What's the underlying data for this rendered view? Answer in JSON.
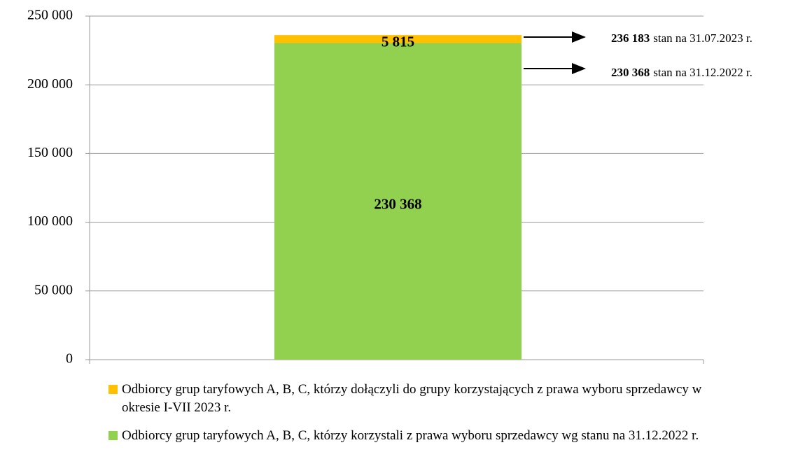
{
  "chart_data": {
    "type": "stacked-bar",
    "categories": [
      null
    ],
    "series": [
      {
        "name": "Odbiorcy grup taryfowych A, B, C, którzy korzystali z prawa wyboru sprzedawcy wg stanu na 31.12.2022 r.",
        "color": "#92d050",
        "values": [
          230368
        ],
        "value_labels": [
          "230 368"
        ]
      },
      {
        "name": "Odbiorcy grup taryfowych A, B, C, którzy dołączyli do grupy korzystających z prawa wyboru sprzedawcy w okresie I-VII 2023 r.",
        "color": "#ffc000",
        "values": [
          5815
        ],
        "value_labels": [
          "5 815"
        ]
      }
    ],
    "ylim": [
      0,
      250000
    ],
    "yticks": [
      0,
      {
        "value": 50000,
        "label": "50 000"
      },
      {
        "value": 100000,
        "label": "100 000"
      },
      {
        "value": 150000,
        "label": "150 000"
      },
      {
        "value": 200000,
        "label": "200 000"
      },
      {
        "value": 250000,
        "label": "250 000"
      }
    ],
    "grid": true,
    "annotations": [
      {
        "value": 236183,
        "label": "236 183",
        "text": "stan na 31.07.2023 r."
      },
      {
        "value": 230368,
        "label": "230 368",
        "text": "stan na 31.12.2022  r."
      }
    ]
  }
}
